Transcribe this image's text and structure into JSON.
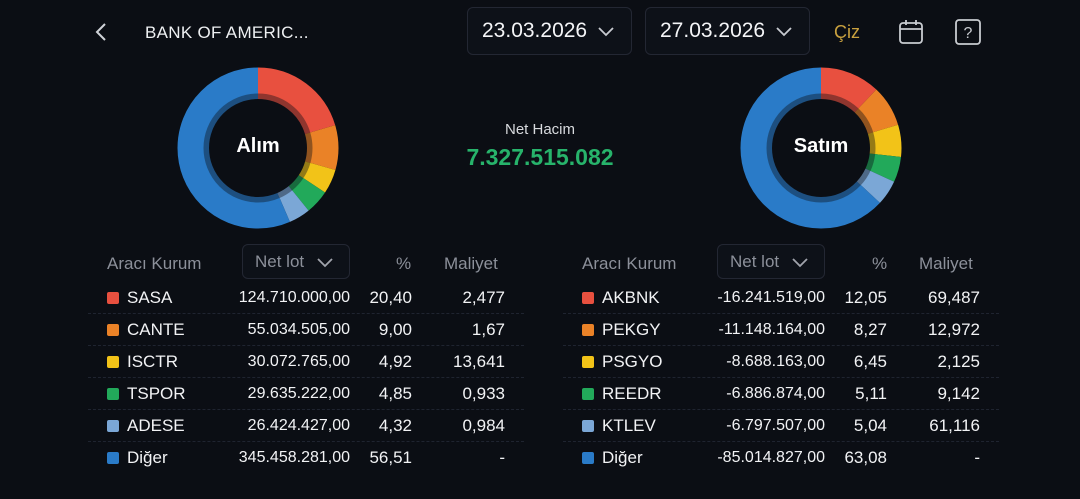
{
  "header": {
    "title": "BANK OF AMERIC...",
    "start_date": "23.03.2026",
    "end_date": "27.03.2026",
    "draw_label": "Çiz",
    "icons": [
      "back-chevron-icon",
      "calendar-icon",
      "help-icon"
    ]
  },
  "net_volume": {
    "label": "Net Hacim",
    "value": "7.327.515.082",
    "color": "#27b36b"
  },
  "colors": [
    "#e8503f",
    "#ea8227",
    "#f2c318",
    "#22a95a",
    "#7ba7d6",
    "#2a7bc8"
  ],
  "buy": {
    "center_label": "Alım",
    "columns": {
      "broker": "Aracı Kurum",
      "metric": "Net lot",
      "pct": "%",
      "cost": "Maliyet"
    },
    "rows": [
      {
        "name": "SASA",
        "lot": "124.710.000,00",
        "pct": "20,40",
        "pct_value": 20.4,
        "cost": "2,477"
      },
      {
        "name": "CANTE",
        "lot": "55.034.505,00",
        "pct": "9,00",
        "pct_value": 9.0,
        "cost": "1,67"
      },
      {
        "name": "ISCTR",
        "lot": "30.072.765,00",
        "pct": "4,92",
        "pct_value": 4.92,
        "cost": "13,641"
      },
      {
        "name": "TSPOR",
        "lot": "29.635.222,00",
        "pct": "4,85",
        "pct_value": 4.85,
        "cost": "0,933"
      },
      {
        "name": "ADESE",
        "lot": "26.424.427,00",
        "pct": "4,32",
        "pct_value": 4.32,
        "cost": "0,984"
      },
      {
        "name": "Diğer",
        "lot": "345.458.281,00",
        "pct": "56,51",
        "pct_value": 56.51,
        "cost": "-"
      }
    ]
  },
  "sell": {
    "center_label": "Satım",
    "columns": {
      "broker": "Aracı Kurum",
      "metric": "Net lot",
      "pct": "%",
      "cost": "Maliyet"
    },
    "rows": [
      {
        "name": "AKBNK",
        "lot": "-16.241.519,00",
        "pct": "12,05",
        "pct_value": 12.05,
        "cost": "69,487"
      },
      {
        "name": "PEKGY",
        "lot": "-11.148.164,00",
        "pct": "8,27",
        "pct_value": 8.27,
        "cost": "12,972"
      },
      {
        "name": "PSGYO",
        "lot": "-8.688.163,00",
        "pct": "6,45",
        "pct_value": 6.45,
        "cost": "2,125"
      },
      {
        "name": "REEDR",
        "lot": "-6.886.874,00",
        "pct": "5,11",
        "pct_value": 5.11,
        "cost": "9,142"
      },
      {
        "name": "KTLEV",
        "lot": "-6.797.507,00",
        "pct": "5,04",
        "pct_value": 5.04,
        "cost": "61,116"
      },
      {
        "name": "Diğer",
        "lot": "-85.014.827,00",
        "pct": "63,08",
        "pct_value": 63.08,
        "cost": "-"
      }
    ]
  }
}
